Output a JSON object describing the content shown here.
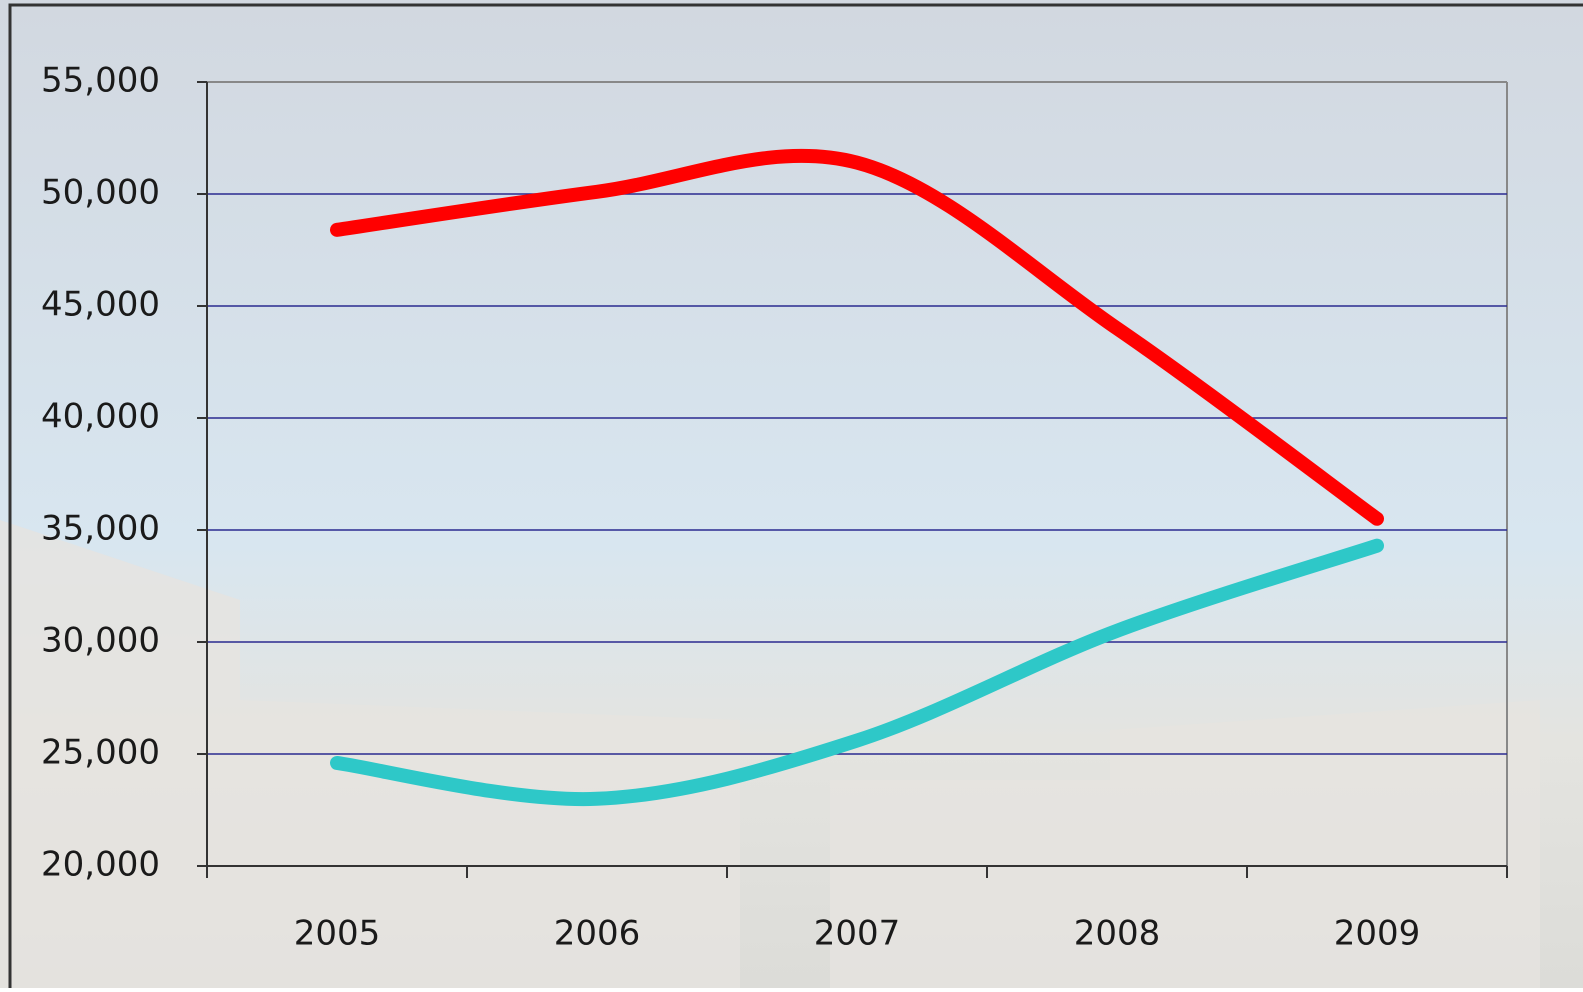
{
  "chart_data": {
    "type": "line",
    "categories": [
      "2005",
      "2006",
      "2007",
      "2008",
      "2009"
    ],
    "series": [
      {
        "color": "#ff0000",
        "values": [
          48400,
          50100,
          51400,
          44000,
          35500
        ]
      },
      {
        "color": "#2ec8c8",
        "values": [
          24600,
          23000,
          25600,
          30500,
          34300
        ]
      }
    ],
    "ylim": [
      20000,
      55000
    ],
    "yticks": [
      {
        "value": 20000,
        "label": "20,000"
      },
      {
        "value": 25000,
        "label": "25,000"
      },
      {
        "value": 30000,
        "label": "30,000"
      },
      {
        "value": 35000,
        "label": "35,000"
      },
      {
        "value": 40000,
        "label": "40,000"
      },
      {
        "value": 45000,
        "label": "45,000"
      },
      {
        "value": 50000,
        "label": "50,000"
      },
      {
        "value": 55000,
        "label": "55,000"
      }
    ],
    "grid": true,
    "smooth": true
  }
}
